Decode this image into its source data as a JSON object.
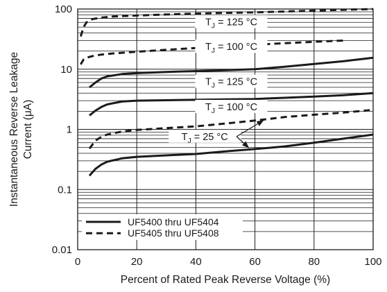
{
  "chart_data": {
    "type": "line",
    "title": "",
    "xlabel": "Percent of Rated Peak Reverse Voltage (%)",
    "ylabel": "Instantaneous Reverse Leakage Current (μA)",
    "ylabel_lines": [
      "Instantaneous Reverse Leakage",
      "Current (μA)"
    ],
    "xlim": [
      0,
      100
    ],
    "ylim": [
      0.01,
      100
    ],
    "yscale": "log",
    "grid": true,
    "legend_position": "bottom-left",
    "x_ticks": [
      "0",
      "20",
      "40",
      "60",
      "80",
      "100"
    ],
    "y_ticks": [
      "0.01",
      "0.1",
      "1",
      "10",
      "100"
    ],
    "series": [
      {
        "name": "UF5405 thru UF5408",
        "style": "dashed",
        "label_prefix": "T",
        "label_sub": "J",
        "label_suffix": " = 125 °C",
        "x": [
          1,
          2,
          3,
          5,
          8,
          12,
          20,
          30,
          40,
          50,
          60,
          70,
          80,
          90,
          100
        ],
        "y": [
          35,
          50,
          60,
          68,
          72,
          75,
          78,
          81,
          84,
          86,
          88,
          91,
          94,
          97,
          100
        ]
      },
      {
        "name": "UF5405 thru UF5408",
        "style": "dashed",
        "label_prefix": "T",
        "label_sub": "J",
        "label_suffix": " = 100 °C",
        "x": [
          1,
          2,
          3,
          5,
          8,
          12,
          20,
          30,
          40,
          50,
          60,
          70,
          80,
          90
        ],
        "y": [
          12,
          14.5,
          15.5,
          16.5,
          17.5,
          18.3,
          19.5,
          21,
          22.5,
          24,
          25.5,
          27,
          28.5,
          30
        ]
      },
      {
        "name": "UF5400 thru UF5404",
        "style": "solid",
        "label_prefix": "T",
        "label_sub": "J",
        "label_suffix": " = 125 °C",
        "x": [
          4,
          6,
          8,
          10,
          15,
          20,
          30,
          40,
          50,
          60,
          70,
          80,
          90,
          100
        ],
        "y": [
          5,
          6,
          7,
          7.6,
          8.3,
          8.6,
          9,
          9.3,
          9.6,
          10,
          11,
          12.2,
          13.6,
          15.5
        ]
      },
      {
        "name": "UF5400 thru UF5404",
        "style": "solid",
        "label_prefix": "T",
        "label_sub": "J",
        "label_suffix": " = 100 °C",
        "x": [
          4,
          6,
          8,
          10,
          15,
          20,
          30,
          40,
          50,
          60,
          70,
          80,
          90,
          100
        ],
        "y": [
          1.7,
          2.05,
          2.35,
          2.6,
          2.9,
          3,
          3.05,
          3.1,
          3.15,
          3.2,
          3.35,
          3.5,
          3.7,
          4
        ]
      },
      {
        "name": "UF5405 thru UF5408",
        "style": "dashed",
        "label_prefix": "T",
        "label_sub": "J",
        "label_suffix": " = 25 °C",
        "x": [
          4,
          6,
          8,
          10,
          15,
          20,
          30,
          40,
          50,
          60,
          70,
          80,
          90,
          100
        ],
        "y": [
          0.48,
          0.65,
          0.75,
          0.82,
          0.92,
          0.98,
          1.05,
          1.12,
          1.25,
          1.4,
          1.6,
          1.75,
          1.9,
          2.1
        ]
      },
      {
        "name": "UF5400 thru UF5404",
        "style": "solid",
        "label_prefix": "T",
        "label_sub": "J",
        "label_suffix": " = 25 °C",
        "x": [
          4,
          6,
          8,
          10,
          15,
          20,
          30,
          40,
          50,
          60,
          70,
          80,
          90,
          100
        ],
        "y": [
          0.17,
          0.22,
          0.26,
          0.29,
          0.33,
          0.35,
          0.37,
          0.39,
          0.43,
          0.47,
          0.52,
          0.6,
          0.7,
          0.82
        ]
      }
    ],
    "legend": [
      {
        "label": "UF5400 thru UF5404",
        "style": "solid"
      },
      {
        "label": "UF5405 thru UF5408",
        "style": "dashed"
      }
    ],
    "colors": {
      "line": "#1a1a1a",
      "grid": "#1a1a1a",
      "background": "#ffffff"
    }
  }
}
